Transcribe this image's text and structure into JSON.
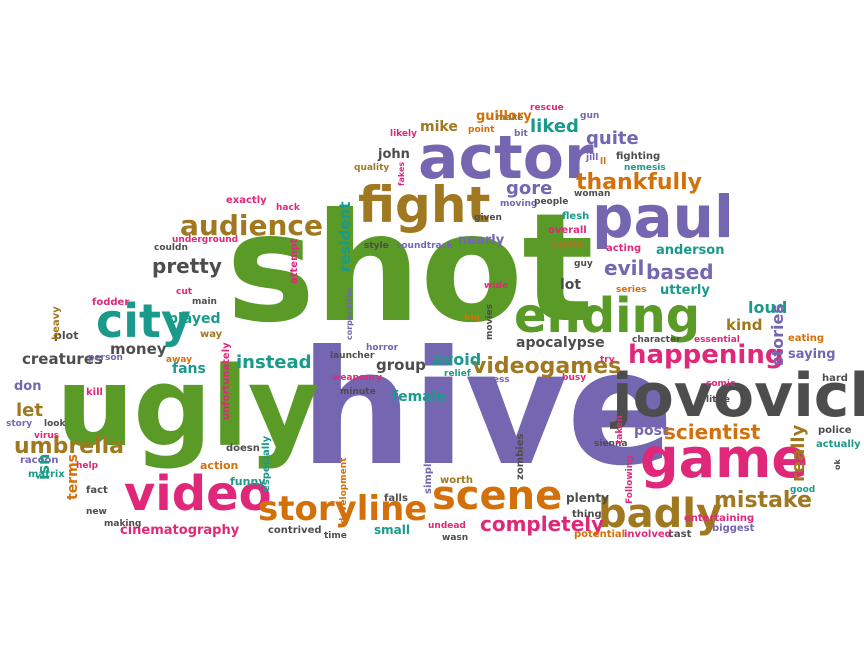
{
  "palette": {
    "green": "#5a9a26",
    "purple": "#7466b0",
    "gray": "#4d4d4d",
    "orange": "#d4700a",
    "pink": "#e0287a",
    "teal": "#1a9a8a",
    "olive": "#a07820",
    "brown": "#8a6a28"
  },
  "words": {
    "shot": "shot",
    "hive": "hive",
    "ugly": "ugly",
    "jovovich": "jovovich",
    "actor": "actor",
    "paul": "paul",
    "game": "game",
    "fight": "fight",
    "ending": "ending",
    "video": "video",
    "city": "city",
    "scene": "scene",
    "badly": "badly",
    "storyline": "storyline",
    "audience": "audience",
    "happening": "happening",
    "mistake": "mistake",
    "scientist": "scientist",
    "umbrella": "umbrella",
    "thankfully": "thankfully",
    "videogames": "videogames",
    "completely": "completely",
    "cinematography": "cinematography",
    "creatures": "creatures",
    "pretty": "pretty",
    "instead": "instead",
    "resident": "resident",
    "evil": "evil",
    "based": "based",
    "loud": "loud",
    "kind": "kind",
    "saying": "saying",
    "stories": "stories",
    "really": "really",
    "gore": "gore",
    "liked": "liked",
    "quite": "quite",
    "mike": "mike",
    "guillory": "guillory",
    "john": "john",
    "money": "money",
    "played": "played",
    "fans": "fans",
    "let": "let",
    "group": "group",
    "avoid": "avoid",
    "female": "female",
    "apocalypse": "apocalypse",
    "lot": "lot",
    "anderson": "anderson",
    "utterly": "utterly",
    "post": "post",
    "nearly": "nearly",
    "overall": "overall",
    "flesh": "flesh",
    "waste": "waste",
    "acting": "acting",
    "soundtrack": "soundtrack",
    "style": "style",
    "given": "given",
    "entertaining": "entertaining",
    "biggest": "biggest",
    "involved": "involved",
    "cast": "cast",
    "potential": "potential",
    "thing": "thing",
    "plenty": "plenty",
    "small": "small",
    "contrived": "contrived",
    "funny": "funny",
    "action": "action",
    "isn": "isn",
    "terms": "terms",
    "don": "don",
    "kill": "kill",
    "matrix": "matrix",
    "story": "story",
    "racoon": "racoon",
    "fact": "fact",
    "new": "new",
    "making": "making",
    "virus": "virus",
    "look": "look",
    "plot": "plot",
    "heavy": "heavy",
    "fodder": "fodder",
    "main": "main",
    "way": "way",
    "away": "away",
    "cut": "cut",
    "person": "person",
    "couldn": "couldn",
    "underground": "underground",
    "attempt": "attempt",
    "exactly": "exactly",
    "hack": "hack",
    "quality": "quality",
    "corporation": "corporation",
    "launcher": "launcher",
    "horror": "horror",
    "weaponry": "weaponry",
    "minute": "minute",
    "unfortunately": "unfortunately",
    "doesn": "doesn",
    "especially": "especially",
    "development": "development",
    "falls": "falls",
    "simply": "simply",
    "worth": "worth",
    "undead": "undead",
    "wasn": "wasn",
    "time": "time",
    "zombies": "zombies",
    "relief": "relief",
    "guess": "guess",
    "busy": "busy",
    "try": "try",
    "big": "big",
    "movies": "movies",
    "wide": "wide",
    "moving": "moving",
    "people": "people",
    "woman": "woman",
    "nemesis": "nemesis",
    "fighting": "fighting",
    "character": "character",
    "comic": "comic",
    "little": "little",
    "police": "police",
    "actually": "actually",
    "good": "good",
    "hard": "hard",
    "eating": "eating",
    "essential": "essential",
    "series": "series",
    "sienna": "sienna",
    "taken": "taken",
    "following": "Following",
    "jill": "jill",
    "gun": "gun",
    "rescue": "rescue",
    "bit": "bit",
    "point": "point",
    "likely": "likely",
    "fakes": "fakes",
    "ok": "ok",
    "ll": "ll",
    "help": "help",
    "guy": "guy",
    "make": "make"
  }
}
